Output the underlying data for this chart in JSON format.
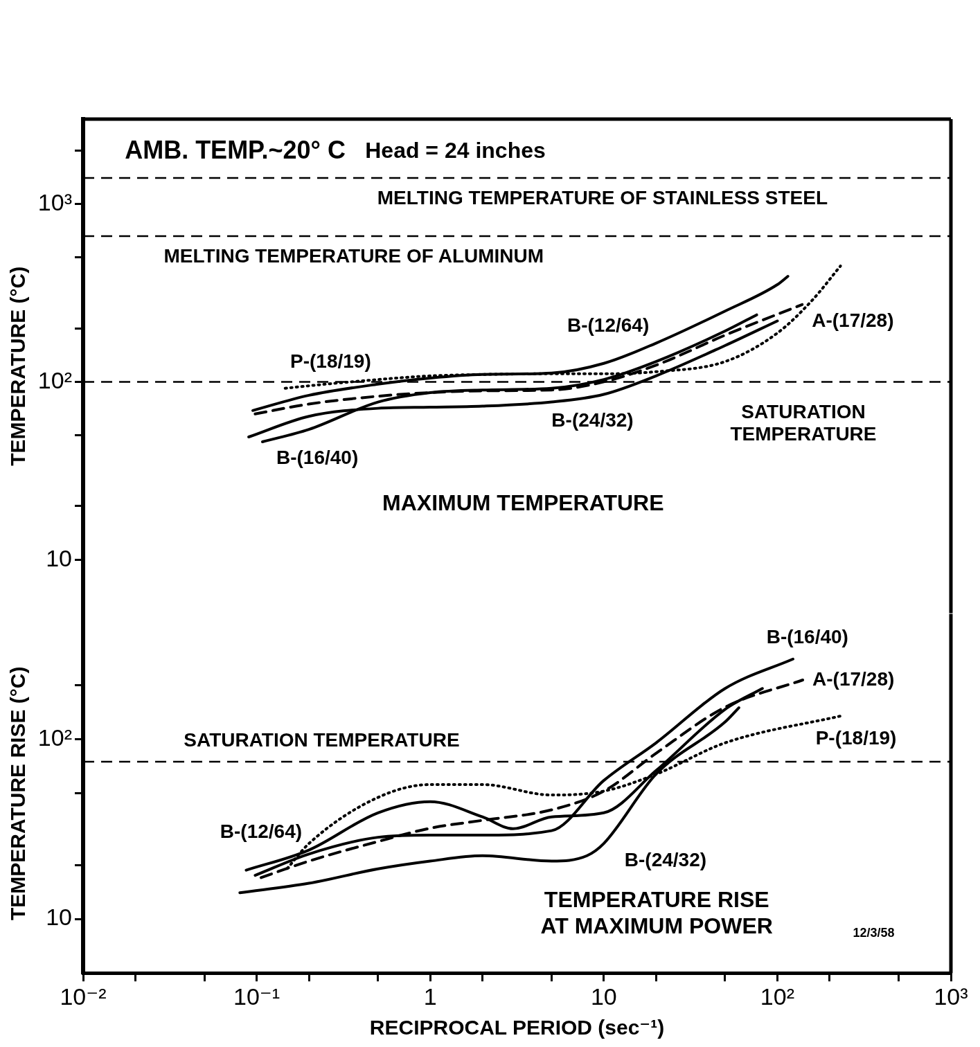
{
  "chart_data": [
    {
      "type": "line",
      "ylabel": "TEMPERATURE (°C)",
      "log": "xy",
      "marker": "none",
      "legend": false,
      "tick_labels": "y",
      "xlim": [
        0.01,
        1000
      ],
      "ylim": [
        5,
        3000
      ],
      "yticks": [
        10,
        {
          "value": 20,
          "label": null
        },
        {
          "value": 50,
          "label": null
        },
        {
          "value": 100,
          "label": "10²"
        },
        {
          "value": 200,
          "label": null
        },
        {
          "value": 500,
          "label": null
        },
        {
          "value": 1000,
          "label": "10³"
        },
        {
          "value": 2000,
          "label": null
        }
      ],
      "annotations": [
        "AMB. TEMP.~20° C",
        "Head = 24 inches",
        "MAXIMUM TEMPERATURE"
      ],
      "ref_lines": [
        {
          "axis": "y",
          "value": 1400,
          "label": "MELTING TEMPERATURE OF STAINLESS STEEL",
          "line_style": "dashed"
        },
        {
          "axis": "y",
          "value": 660,
          "label": "MELTING TEMPERATURE OF ALUMINUM",
          "line_style": "dashed"
        },
        {
          "axis": "y",
          "value": 100,
          "label": "SATURATION TEMPERATURE",
          "line_style": "dashed"
        }
      ],
      "series": [
        {
          "name": "B-(12/64)",
          "color": "#000000",
          "line_style": "solid",
          "x": [
            0.095,
            0.2,
            0.5,
            1,
            2,
            5,
            10,
            20,
            50,
            100,
            115
          ],
          "values": [
            69,
            84,
            97,
            105,
            110,
            112,
            127,
            165,
            250,
            352,
            392
          ]
        },
        {
          "name": "P-(18/19)",
          "color": "#000000",
          "line_style": "dotted",
          "x": [
            0.146,
            0.2,
            0.5,
            1,
            2,
            5,
            10,
            20,
            50,
            100,
            158,
            231
          ],
          "values": [
            92,
            95,
            103,
            108,
            110,
            111,
            111,
            114,
            130,
            188,
            286,
            448
          ]
        },
        {
          "name": "A-(17/28)",
          "color": "#000000",
          "line_style": "dashed",
          "x": [
            0.098,
            0.2,
            0.5,
            1,
            2,
            5,
            10,
            20,
            50,
            139
          ],
          "values": [
            66,
            75,
            83,
            87,
            89,
            90,
            100,
            124,
            183,
            272
          ]
        },
        {
          "name": "B-(24/32)",
          "color": "#000000",
          "line_style": "solid",
          "x": [
            0.09,
            0.2,
            0.5,
            1,
            2,
            5,
            10,
            20,
            50,
            100
          ],
          "values": [
            49,
            64,
            71,
            72,
            73,
            77,
            85,
            108,
            160,
            220
          ]
        },
        {
          "name": "B-(16/40)",
          "color": "#000000",
          "line_style": "solid",
          "x": [
            0.108,
            0.2,
            0.5,
            1,
            2,
            5,
            10,
            20,
            50,
            76
          ],
          "values": [
            46,
            54,
            77,
            87,
            90,
            92,
            103,
            130,
            193,
            238
          ]
        }
      ]
    },
    {
      "type": "line",
      "ylabel": "TEMPERATURE RISE (°C)",
      "xlabel": "RECIPROCAL PERIOD (sec⁻¹)",
      "log": "xy",
      "marker": "none",
      "legend": false,
      "xlim": [
        0.01,
        1000
      ],
      "xticks": [
        {
          "value": 0.01,
          "label": "10⁻²"
        },
        {
          "value": 0.02,
          "label": null
        },
        {
          "value": 0.05,
          "label": null
        },
        {
          "value": 0.1,
          "label": "10⁻¹"
        },
        {
          "value": 0.2,
          "label": null
        },
        {
          "value": 0.5,
          "label": null
        },
        1,
        {
          "value": 2,
          "label": null
        },
        {
          "value": 5,
          "label": null
        },
        10,
        {
          "value": 20,
          "label": null
        },
        {
          "value": 50,
          "label": null
        },
        {
          "value": 100,
          "label": "10²"
        },
        {
          "value": 200,
          "label": null
        },
        {
          "value": 500,
          "label": null
        },
        {
          "value": 1000,
          "label": "10³"
        }
      ],
      "ylim": [
        5,
        500
      ],
      "yticks": [
        10,
        {
          "value": 20,
          "label": null
        },
        {
          "value": 50,
          "label": null
        },
        {
          "value": 100,
          "label": "10²"
        },
        {
          "value": 200,
          "label": null
        }
      ],
      "annotations": [
        "TEMPERATURE RISE AT MAXIMUM POWER",
        "12/3/58"
      ],
      "ref_lines": [
        {
          "axis": "y",
          "value": 75,
          "label": "SATURATION TEMPERATURE",
          "line_style": "dashed"
        }
      ],
      "series": [
        {
          "name": "B-(12/64)",
          "color": "#000000",
          "line_style": "solid",
          "x": [
            0.087,
            0.2,
            0.5,
            1,
            2,
            3,
            5,
            10,
            20,
            50,
            82
          ],
          "values": [
            18.7,
            24.2,
            39,
            45,
            37,
            31.8,
            37,
            39,
            67,
            147,
            192
          ]
        },
        {
          "name": "B-(16/40)",
          "color": "#000000",
          "line_style": "solid",
          "x": [
            0.098,
            0.2,
            0.5,
            1,
            2,
            5,
            10,
            20,
            50,
            123
          ],
          "values": [
            17.5,
            23,
            28.5,
            29.3,
            29.3,
            31,
            59,
            95.6,
            192,
            280
          ]
        },
        {
          "name": "A-(17/28)",
          "color": "#000000",
          "line_style": "dashed",
          "x": [
            0.106,
            0.2,
            0.5,
            1,
            2,
            5,
            10,
            20,
            50,
            140
          ],
          "values": [
            17,
            21,
            27,
            32,
            35.4,
            40.5,
            51.5,
            83.6,
            151,
            214
          ]
        },
        {
          "name": "P-(18/19)",
          "color": "#000000",
          "line_style": "dotted",
          "x": [
            0.15,
            0.2,
            0.5,
            1,
            2,
            5,
            10,
            20,
            50,
            240
          ],
          "values": [
            19.1,
            26.3,
            47.5,
            56,
            56,
            49,
            51.5,
            64,
            95.6,
            136
          ]
        },
        {
          "name": "B-(24/32)",
          "color": "#000000",
          "line_style": "solid",
          "x": [
            0.08,
            0.2,
            0.5,
            1,
            2,
            5,
            8,
            10,
            20,
            50,
            60
          ],
          "values": [
            14,
            15.8,
            19,
            21,
            22.5,
            21,
            22.5,
            26.3,
            64,
            125,
            150
          ]
        }
      ]
    }
  ]
}
